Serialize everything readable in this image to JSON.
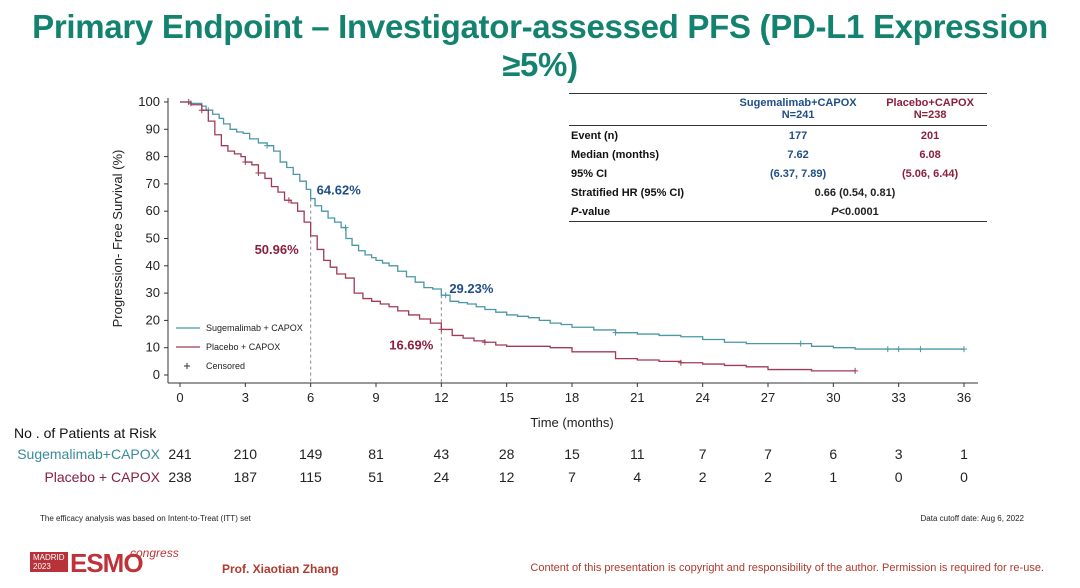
{
  "page": {
    "title": "Primary Endpoint – Investigator-assessed PFS (PD-L1 Expression ≥5%)"
  },
  "stats_table": {
    "col1_name": "Sugemalimab+CAPOX",
    "col1_n": "N=241",
    "col2_name": "Placebo+CAPOX",
    "col2_n": "N=238",
    "rows": [
      {
        "label": "Event (n)",
        "v1": "177",
        "v2": "201"
      },
      {
        "label": "Median (months)",
        "v1": "7.62",
        "v2": "6.08"
      },
      {
        "label": "95% CI",
        "v1": "(6.37, 7.89)",
        "v2": "(5.06, 6.44)"
      }
    ],
    "hr_label": "Stratified HR (95% CI)",
    "hr_value": "0.66 (0.54, 0.81)",
    "p_label_italic": "P",
    "p_label_rest": "-value",
    "p_value_italic": "P",
    "p_value_rest": "<0.0001"
  },
  "risk_table": {
    "title": "No . of Patients at Risk",
    "rows": [
      {
        "name": "Sugemalimab+CAPOX",
        "values": [
          "241",
          "210",
          "149",
          "81",
          "43",
          "28",
          "15",
          "11",
          "7",
          "7",
          "6",
          "3",
          "1"
        ]
      },
      {
        "name": "Placebo + CAPOX",
        "values": [
          "238",
          "187",
          "115",
          "51",
          "24",
          "12",
          "7",
          "4",
          "2",
          "2",
          "1",
          "0",
          "0"
        ]
      }
    ]
  },
  "footer": {
    "left_note": "The efficacy analysis was based on Intent-to-Treat (ITT) set",
    "right_note": "Data cutoff date: Aug 6, 2022",
    "logo_city": "MADRID",
    "logo_year": "2023",
    "logo_brand": "ESMO",
    "logo_suffix": "congress",
    "presenter": "Prof. Xiaotian Zhang",
    "copyright": "Content of this presentation is copyright and responsibility of the author. Permission is required for re-use."
  },
  "colors": {
    "title": "#13826f",
    "sugemalimab": "#4a97a6",
    "placebo": "#a03a55",
    "sug_text": "#1f4e86",
    "pla_text": "#8a1f3e"
  },
  "chart_data": {
    "type": "line",
    "title": "",
    "xlabel": "Time (months)",
    "ylabel": "Progression- Free Survival (%)",
    "xlim": [
      0,
      37
    ],
    "ylim": [
      0,
      100
    ],
    "xticks": [
      0,
      3,
      6,
      9,
      12,
      15,
      18,
      21,
      24,
      27,
      30,
      33,
      36
    ],
    "yticks": [
      0,
      10,
      20,
      30,
      40,
      50,
      60,
      70,
      80,
      90,
      100
    ],
    "legend": {
      "position": "bottom-left",
      "entries": [
        "Sugemalimab + CAPOX",
        "Placebo + CAPOX",
        "Censored"
      ]
    },
    "series": [
      {
        "name": "Sugemalimab + CAPOX",
        "color": "#4a97a6",
        "x": [
          0,
          0.5,
          1.0,
          1.2,
          1.5,
          1.8,
          2.0,
          2.3,
          2.6,
          2.9,
          3.2,
          3.6,
          4.0,
          4.3,
          4.6,
          4.9,
          5.2,
          5.5,
          5.8,
          6.0,
          6.2,
          6.5,
          6.8,
          7.1,
          7.4,
          7.62,
          7.9,
          8.2,
          8.5,
          8.8,
          9.0,
          9.3,
          9.6,
          10.0,
          10.4,
          10.8,
          11.2,
          11.6,
          12.0,
          12.4,
          12.8,
          13.2,
          13.6,
          14.0,
          14.5,
          15.0,
          15.5,
          16.0,
          16.5,
          17.0,
          17.5,
          18.0,
          19.0,
          20.0,
          21.0,
          22.0,
          23.0,
          24.0,
          25.0,
          26.0,
          27.0,
          28.0,
          29.0,
          30.0,
          31.0,
          32.0,
          33.0,
          34.0,
          36.0
        ],
        "y": [
          100,
          99.5,
          98.5,
          97,
          95.5,
          94,
          92,
          90,
          89,
          88.5,
          86.5,
          85,
          84,
          82,
          78,
          76,
          73.5,
          71,
          68,
          64.62,
          62,
          60,
          57.5,
          56,
          54,
          50,
          47.5,
          45.5,
          44,
          43,
          42,
          41,
          40,
          38,
          36,
          34,
          32,
          31.5,
          29.23,
          27,
          26.5,
          26,
          25,
          24,
          23,
          22,
          21.5,
          21,
          20,
          19,
          18.5,
          17.5,
          16.5,
          15.5,
          15,
          14.5,
          14,
          13,
          12,
          11.5,
          11.5,
          11.5,
          10.5,
          10,
          9.5,
          9.5,
          9.5,
          9.5,
          9.5
        ],
        "censored_x": [
          0.5,
          1.3,
          4.0,
          7.6,
          12.2,
          20.0,
          28.5,
          32.5,
          33.0,
          34.0,
          36.0
        ]
      },
      {
        "name": "Placebo + CAPOX",
        "color": "#a03a55",
        "x": [
          0,
          0.5,
          1.0,
          1.3,
          1.6,
          1.9,
          2.2,
          2.5,
          2.8,
          3.0,
          3.3,
          3.6,
          3.9,
          4.2,
          4.5,
          4.8,
          5.1,
          5.4,
          5.7,
          6.0,
          6.3,
          6.6,
          6.9,
          7.2,
          7.6,
          8.0,
          8.4,
          8.8,
          9.2,
          9.6,
          10.0,
          10.5,
          11.0,
          11.5,
          12.0,
          12.5,
          13.0,
          13.5,
          14.0,
          14.5,
          15.0,
          16.0,
          17.0,
          18.0,
          19.0,
          20.0,
          21.0,
          22.0,
          23.0,
          24.0,
          25.0,
          26.0,
          27.0,
          28.0,
          29.0,
          30.0,
          31.0
        ],
        "y": [
          100,
          99,
          97,
          93,
          88,
          84,
          82,
          81,
          80,
          78,
          77,
          74,
          72,
          69,
          67,
          64,
          63,
          60,
          56,
          50.96,
          46,
          42,
          39.5,
          37,
          35.5,
          30,
          28,
          27,
          26,
          25,
          23.5,
          22,
          20.5,
          19,
          16.69,
          14.5,
          13.5,
          12.5,
          12,
          11,
          10.5,
          10.5,
          10,
          8.5,
          8.5,
          6,
          5.5,
          5,
          4.5,
          4,
          3.5,
          3,
          2,
          2,
          1.5,
          1.5,
          1.5
        ],
        "censored_x": [
          0.4,
          1.0,
          3.0,
          3.6,
          5.0,
          12.0,
          14.0,
          23.0,
          31.0
        ]
      }
    ],
    "annotations": [
      {
        "text": "64.62%",
        "x": 6,
        "y": 64.62,
        "series": "Sugemalimab + CAPOX"
      },
      {
        "text": "50.96%",
        "x": 6,
        "y": 50.96,
        "series": "Placebo + CAPOX"
      },
      {
        "text": "29.23%",
        "x": 12,
        "y": 29.23,
        "series": "Sugemalimab + CAPOX"
      },
      {
        "text": "16.69%",
        "x": 12,
        "y": 16.69,
        "series": "Placebo + CAPOX"
      }
    ]
  }
}
